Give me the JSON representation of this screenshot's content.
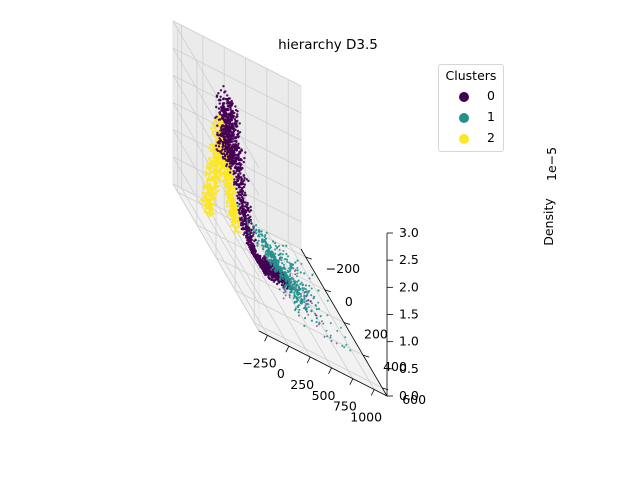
{
  "chart_data": {
    "type": "scatter",
    "projection": "3d",
    "title": "hierarchy D3.5",
    "xlabel": "",
    "ylabel": "",
    "zlabel": "Density",
    "z_offset_label": "1e−5",
    "xlim": [
      -350,
      1150
    ],
    "ylim": [
      -250,
      650
    ],
    "zlim": [
      0,
      3.0
    ],
    "x_ticks": [
      "−250",
      "0",
      "250",
      "500",
      "750",
      "1000"
    ],
    "y_ticks": [
      "−200",
      "0",
      "200",
      "400",
      "600"
    ],
    "z_ticks": [
      "0.0",
      "0.5",
      "1.0",
      "1.5",
      "2.0",
      "2.5",
      "3.0"
    ],
    "grid": true,
    "legend": {
      "title": "Clusters",
      "placement": "top-right",
      "entries": [
        {
          "label": "0",
          "color": "#440154"
        },
        {
          "label": "1",
          "color": "#21918c"
        },
        {
          "label": "2",
          "color": "#fde725"
        }
      ]
    },
    "series": [
      {
        "name": "0",
        "color": "#440154",
        "x_range": [
          -150,
          650
        ],
        "y_range": [
          -100,
          300
        ],
        "z_range": [
          0.0,
          2.9
        ]
      },
      {
        "name": "1",
        "color": "#21918c",
        "x_range": [
          250,
          1100
        ],
        "y_range": [
          -200,
          450
        ],
        "z_range": [
          0.0,
          0.4
        ]
      },
      {
        "name": "2",
        "color": "#fde725",
        "x_range": [
          -300,
          100
        ],
        "y_range": [
          -50,
          200
        ],
        "z_range": [
          0.1,
          2.4
        ]
      }
    ]
  }
}
